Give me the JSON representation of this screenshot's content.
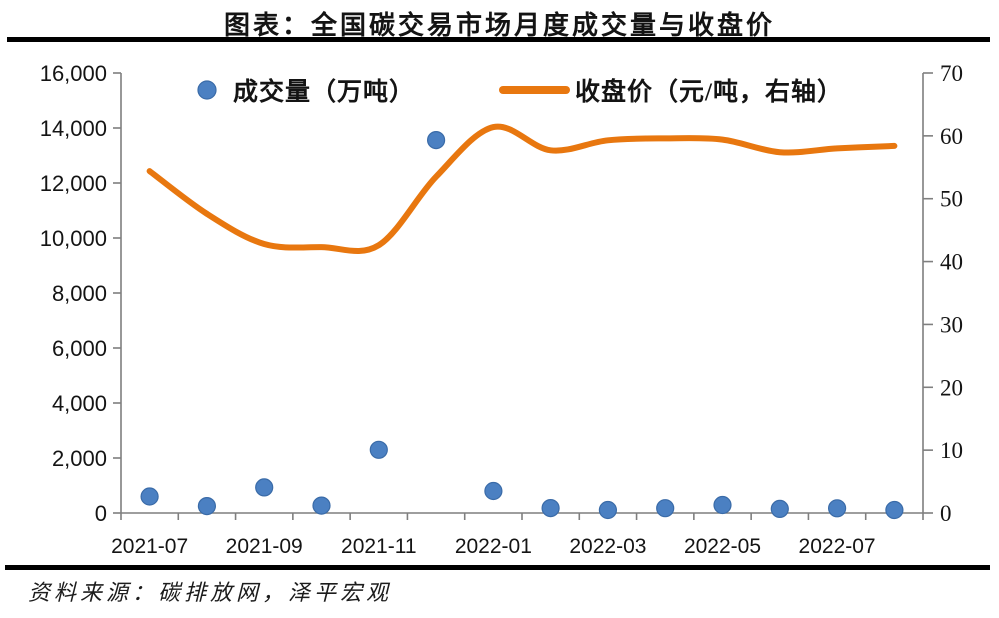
{
  "source_note": "资料来源：碳排放网，泽平宏观",
  "chart_data": {
    "type": "scatter+line",
    "title": "图表：全国碳交易市场月度成交量与收盘价",
    "months": [
      "2021-07",
      "2021-08",
      "2021-09",
      "2021-10",
      "2021-11",
      "2021-12",
      "2022-01",
      "2022-02",
      "2022-03",
      "2022-04",
      "2022-05",
      "2022-06",
      "2022-07",
      "2022-08"
    ],
    "series": [
      {
        "name": "成交量（万吨）",
        "type": "scatter",
        "axis": "left",
        "values": [
          600,
          250,
          930,
          270,
          2300,
          13560,
          800,
          180,
          110,
          175,
          290,
          150,
          170,
          110
        ]
      },
      {
        "name": "收盘价（元/吨，右轴）",
        "type": "line",
        "axis": "right",
        "values": [
          54.4,
          47.6,
          42.8,
          42.3,
          42.6,
          53.5,
          61.4,
          57.7,
          59.3,
          59.6,
          59.4,
          57.4,
          58.0,
          58.4
        ]
      }
    ],
    "y_left": {
      "min": 0,
      "max": 16000,
      "ticks": [
        "0",
        "2,000",
        "4,000",
        "6,000",
        "8,000",
        "10,000",
        "12,000",
        "14,000",
        "16,000"
      ]
    },
    "y_right": {
      "min": 0,
      "max": 70,
      "ticks": [
        "0",
        "10",
        "20",
        "30",
        "40",
        "50",
        "60",
        "70"
      ]
    },
    "x_tick_labels": [
      "2021-07",
      "2021-09",
      "2021-11",
      "2022-01",
      "2022-03",
      "2022-05",
      "2022-07"
    ],
    "grid": false,
    "legend_position": "top",
    "colors": {
      "scatter": "#4b80c2",
      "scatter_edge": "#3a6ba8",
      "line": "#e8770f",
      "axis": "#7f7f7f",
      "text": "#141414",
      "rule": "#000000"
    }
  }
}
